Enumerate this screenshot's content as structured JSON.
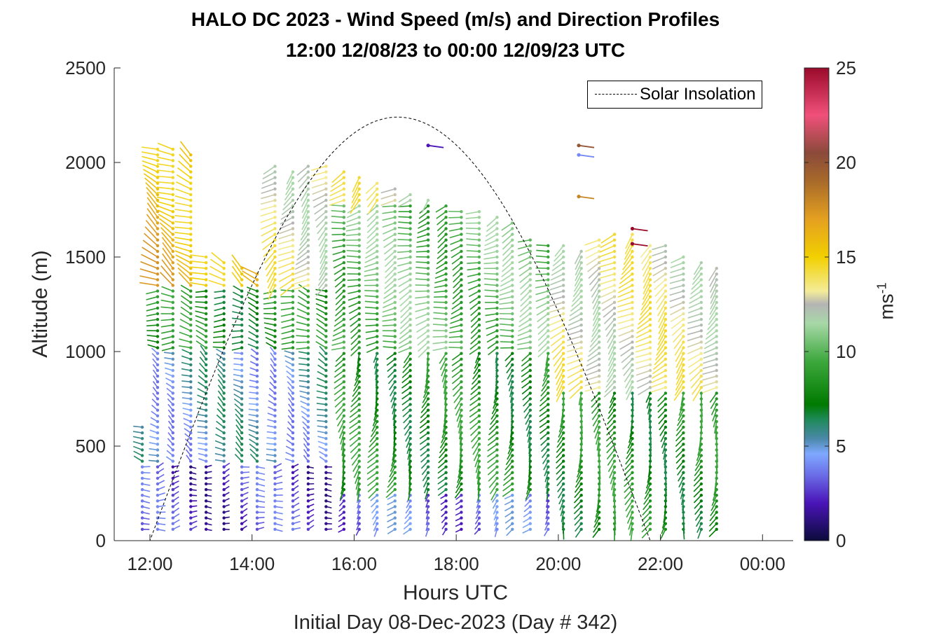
{
  "chart_data": {
    "type": "quiver",
    "title": "HALO DC 2023 - Wind Speed (m/s) and Direction Profiles",
    "subtitle": "12:00 12/08/23 to 00:00 12/09/23  UTC",
    "xlabel": "Hours UTC",
    "xlabel_sub": "Initial Day 08-Dec-2023 (Day # 342)",
    "ylabel": "Altitude (m)",
    "xlim": [
      11.3,
      24.6
    ],
    "ylim": [
      0,
      2500
    ],
    "x_ticks": [
      12,
      14,
      16,
      18,
      20,
      22,
      24
    ],
    "x_tick_labels": [
      "12:00",
      "14:00",
      "16:00",
      "18:00",
      "20:00",
      "22:00",
      "00:00"
    ],
    "y_ticks": [
      0,
      500,
      1000,
      1500,
      2000,
      2500
    ],
    "y_tick_labels": [
      "0",
      "500",
      "1000",
      "1500",
      "2000",
      "2500"
    ],
    "colorbar": {
      "label": "ms",
      "label_exponent": "-1",
      "range": [
        0,
        25
      ],
      "ticks": [
        0,
        5,
        10,
        15,
        20,
        25
      ],
      "tick_labels": [
        "0",
        "5",
        "10",
        "15",
        "20",
        "25"
      ],
      "stops": [
        {
          "v": 0,
          "color": "#0b0b3b"
        },
        {
          "v": 2,
          "color": "#4a14b8"
        },
        {
          "v": 3.5,
          "color": "#6b6fe8"
        },
        {
          "v": 4.6,
          "color": "#7fa8ff"
        },
        {
          "v": 5.4,
          "color": "#4a88a8"
        },
        {
          "v": 6.4,
          "color": "#1f8a5a"
        },
        {
          "v": 7.2,
          "color": "#007a00"
        },
        {
          "v": 9.5,
          "color": "#3da83d"
        },
        {
          "v": 11.5,
          "color": "#a8d8a8"
        },
        {
          "v": 12.5,
          "color": "#b4b4b4"
        },
        {
          "v": 13.2,
          "color": "#f4ec98"
        },
        {
          "v": 15,
          "color": "#f2d000"
        },
        {
          "v": 17,
          "color": "#e4a020"
        },
        {
          "v": 19,
          "color": "#a86a2a"
        },
        {
          "v": 20.5,
          "color": "#8a4a3a"
        },
        {
          "v": 22.5,
          "color": "#f0507a"
        },
        {
          "v": 25,
          "color": "#9a0a2a"
        }
      ]
    },
    "legend": {
      "entries": [
        "Solar Insolation"
      ],
      "location": "top-right",
      "style": "dashed"
    },
    "solar_insolation": {
      "shape": "half-sine",
      "sunrise_hour": 12.0,
      "solar_noon_hour": 16.85,
      "sunset_hour": 21.8,
      "peak_altitude": 2240
    },
    "profile_times": [
      11.85,
      12.15,
      12.45,
      12.8,
      13.1,
      13.45,
      13.8,
      14.1,
      14.45,
      14.8,
      15.1,
      15.45,
      15.8,
      16.1,
      16.45,
      16.8,
      17.1,
      17.45,
      17.8,
      18.1,
      18.45,
      18.8,
      19.1,
      19.45,
      19.8,
      20.1,
      20.45,
      20.8,
      21.1,
      21.45,
      21.8,
      22.1,
      22.45,
      22.8,
      23.1
    ],
    "profile_tops": [
      600,
      2080,
      2080,
      2060,
      1520,
      1480,
      1440,
      1420,
      1980,
      1970,
      1990,
      1990,
      1960,
      1940,
      1900,
      1870,
      1850,
      1820,
      1790,
      1760,
      1740,
      1730,
      1680,
      1600,
      1570,
      1560,
      1550,
      1600,
      1640,
      1640,
      1560,
      1560,
      1520,
      1470,
      1460
    ],
    "range_gate_spacing_m": 30,
    "speed_regimes": [
      {
        "time_range": [
          11.8,
          15.6
        ],
        "altitude_range": [
          0,
          400
        ],
        "speed": 2.5,
        "direction_deg": 80
      },
      {
        "time_range": [
          11.8,
          15.6
        ],
        "altitude_range": [
          400,
          1000
        ],
        "speed": 5,
        "direction_deg": 300
      },
      {
        "time_range": [
          11.8,
          15.6
        ],
        "altitude_range": [
          1000,
          1350
        ],
        "speed": 8,
        "direction_deg": 280
      },
      {
        "time_range": [
          11.8,
          14.2
        ],
        "altitude_range": [
          1350,
          2100
        ],
        "speed": 16,
        "direction_deg": 300
      },
      {
        "time_range": [
          15.6,
          20.0
        ],
        "altitude_range": [
          0,
          250
        ],
        "speed": 3.5,
        "direction_deg": 220
      },
      {
        "time_range": [
          15.6,
          20.0
        ],
        "altitude_range": [
          250,
          1000
        ],
        "speed": 8,
        "direction_deg": 210
      },
      {
        "time_range": [
          15.6,
          20.0
        ],
        "altitude_range": [
          1000,
          1800
        ],
        "speed": 10,
        "direction_deg": 250
      },
      {
        "time_range": [
          20.0,
          23.2
        ],
        "altitude_range": [
          0,
          800
        ],
        "speed": 8,
        "direction_deg": 200
      },
      {
        "time_range": [
          20.0,
          23.2
        ],
        "altitude_range": [
          800,
          1600
        ],
        "speed": 13,
        "direction_deg": 230
      }
    ],
    "isolated_vectors": [
      {
        "time": 17.45,
        "altitude": 2090,
        "speed": 2
      },
      {
        "time": 20.4,
        "altitude": 2090,
        "speed": 20
      },
      {
        "time": 20.4,
        "altitude": 2040,
        "speed": 4
      },
      {
        "time": 20.4,
        "altitude": 1820,
        "speed": 18
      },
      {
        "time": 21.45,
        "altitude": 1650,
        "speed": 25
      },
      {
        "time": 21.45,
        "altitude": 1570,
        "speed": 25
      }
    ]
  }
}
